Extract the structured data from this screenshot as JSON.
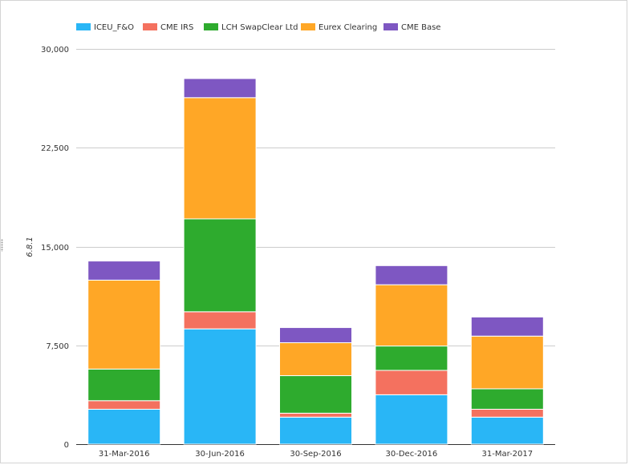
{
  "chart_data": {
    "type": "bar",
    "stacked": true,
    "categories": [
      "31-Mar-2016",
      "30-Jun-2016",
      "30-Sep-2016",
      "30-Dec-2016",
      "31-Mar-2017"
    ],
    "series": [
      {
        "name": "ICEU_F&O",
        "color": "#29b6f6",
        "values": [
          2650,
          8750,
          2050,
          3750,
          2050
        ]
      },
      {
        "name": "CME IRS",
        "color": "#f4715f",
        "values": [
          650,
          1300,
          300,
          1850,
          600
        ]
      },
      {
        "name": "LCH SwapClear Ltd",
        "color": "#2eab2e",
        "values": [
          2400,
          7050,
          2850,
          1850,
          1550
        ]
      },
      {
        "name": "Eurex Clearing",
        "color": "#ffa726",
        "values": [
          6750,
          9200,
          2500,
          4650,
          4000
        ]
      },
      {
        "name": "CME Base",
        "color": "#7e57c2",
        "values": [
          1450,
          1450,
          1150,
          1450,
          1450
        ]
      }
    ],
    "title": "",
    "xlabel": "",
    "ylabel": "6.8.1",
    "ylim": [
      0,
      30000
    ],
    "yticks": [
      0,
      7500,
      15000,
      22500,
      30000
    ],
    "ytick_labels": [
      "0",
      "7,500",
      "15,000",
      "22,500",
      "30,000"
    ],
    "grid": true,
    "legend_position": "top-left"
  }
}
